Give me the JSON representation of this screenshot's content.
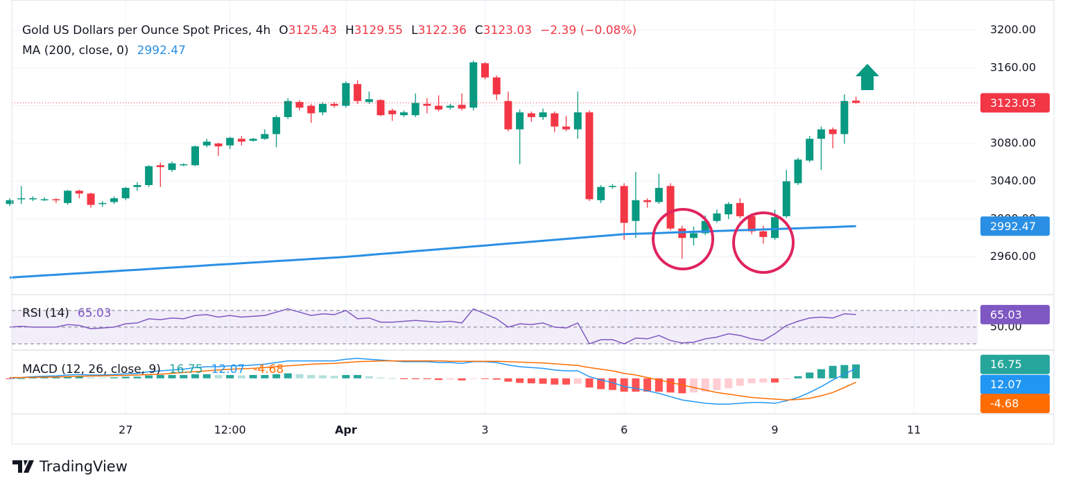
{
  "chart_data": {
    "type": "candlestick",
    "title": "Gold US Dollars per Ounce Spot Prices, 4h",
    "ohlc_labels": [
      "O",
      "H",
      "L",
      "C"
    ],
    "change": "−2.39 (−0.08%)",
    "up_color": "#089981",
    "down_color": "#f23645",
    "categories": [
      null,
      null,
      null,
      null,
      null,
      null,
      null,
      null,
      null,
      null,
      "27",
      null,
      null,
      null,
      null,
      null,
      null,
      null,
      null,
      "12:00",
      null,
      null,
      null,
      null,
      null,
      null,
      null,
      null,
      null,
      "Apr",
      null,
      null,
      null,
      null,
      null,
      null,
      null,
      null,
      null,
      null,
      null,
      "3",
      null,
      null,
      null,
      null,
      null,
      null,
      null,
      null,
      null,
      null,
      null,
      "6",
      null,
      null,
      null,
      null,
      null,
      null,
      null,
      null,
      null,
      null,
      null,
      null,
      "9",
      null,
      null,
      null,
      null,
      null,
      null,
      null,
      null,
      null,
      null,
      null,
      "11",
      null,
      null,
      null,
      null,
      null
    ],
    "open": [
      3016,
      3021,
      3021,
      3021,
      3021,
      3017,
      3030,
      3027,
      3016,
      3018,
      3022,
      3034,
      3036,
      3057,
      3052,
      3057,
      3057,
      3078,
      3080,
      3078,
      3085,
      3083,
      3085,
      3090,
      3108,
      3124,
      3120,
      3113,
      3122,
      3120,
      3143,
      3124,
      3126,
      3115,
      3110,
      3110,
      3122,
      3120,
      3118,
      3121,
      3118,
      3165,
      3150,
      3125,
      3095,
      3112,
      3108,
      3112,
      3098,
      3095,
      3113,
      3020,
      3034,
      3035,
      2998,
      3020,
      3018,
      3035,
      2990,
      2980,
      2985,
      2998,
      3005,
      3017,
      3003,
      2987,
      2980,
      3003,
      3038,
      3062,
      3085,
      3095,
      3090,
      3125.43,
      null,
      null,
      null,
      null,
      null,
      null,
      null,
      null,
      null,
      null
    ],
    "high": [
      3022,
      3035,
      3024,
      3023,
      3022,
      3031,
      3031,
      3028,
      3019,
      3024,
      3034,
      3039,
      3057,
      3060,
      3061,
      3059,
      3078,
      3085,
      3081,
      3087,
      3088,
      3086,
      3095,
      3110,
      3128,
      3126,
      3122,
      3124,
      3124,
      3146,
      3147,
      3135,
      3127,
      3117,
      3115,
      3133,
      3128,
      3131,
      3122,
      3133,
      3168,
      3166,
      3152,
      3135,
      3116,
      3114,
      3117,
      3114,
      3109,
      3135,
      3115,
      3036,
      3037,
      3038,
      3050,
      3022,
      3048,
      3038,
      2993,
      2992,
      3004,
      3010,
      3018,
      3022,
      3006,
      2993,
      3010,
      3052,
      3065,
      3088,
      3098,
      3097,
      3132,
      3129.55,
      null,
      null,
      null,
      null,
      null,
      null,
      null,
      null,
      null,
      null
    ],
    "low": [
      3014,
      3016,
      3019,
      3019,
      3017,
      3015,
      3022,
      3012,
      3013,
      3016,
      3020,
      3030,
      3034,
      3034,
      3050,
      3056,
      3056,
      3076,
      3067,
      3074,
      3078,
      3082,
      3084,
      3076,
      3106,
      3115,
      3102,
      3110,
      3118,
      3118,
      3122,
      3122,
      3109,
      3104,
      3108,
      3108,
      3112,
      3114,
      3116,
      3115,
      3115,
      3148,
      3126,
      3093,
      3058,
      3103,
      3105,
      3092,
      3093,
      3085,
      3019,
      3017,
      3032,
      2978,
      2980,
      3012,
      3016,
      2988,
      2958,
      2972,
      2983,
      2996,
      3000,
      3001,
      2984,
      2974,
      2978,
      3001,
      3036,
      3060,
      3052,
      3075,
      3080,
      3122.36,
      null,
      null,
      null,
      null,
      null,
      null,
      null,
      null,
      null,
      null
    ],
    "close": [
      3020,
      3022,
      3022,
      3021,
      3020,
      3030,
      3027,
      3015,
      3017,
      3022,
      3033,
      3036,
      3056,
      3055,
      3059,
      3058,
      3077,
      3082,
      3077,
      3086,
      3082,
      3085,
      3090,
      3108,
      3125,
      3118,
      3112,
      3122,
      3120,
      3144,
      3125,
      3127,
      3110,
      3111,
      3113,
      3123,
      3120,
      3116,
      3120,
      3117,
      3166,
      3150,
      3132,
      3095,
      3113,
      3108,
      3113,
      3098,
      3095,
      3113,
      3021,
      3034,
      3035,
      2996,
      3020,
      3018,
      3033,
      2990,
      2980,
      2985,
      2998,
      3006,
      3016,
      3003,
      2987,
      2981,
      3002,
      3040,
      3063,
      3085,
      3095,
      3090,
      3125,
      3123.03,
      null,
      null,
      null,
      null,
      null,
      null,
      null,
      null,
      null,
      null
    ],
    "ylim": [
      2920,
      3232
    ],
    "yticks": [
      {
        "value": 2960,
        "label": "2960.00"
      },
      {
        "value": 3000,
        "label": "3000.00"
      },
      {
        "value": 3040,
        "label": "3040.00"
      },
      {
        "value": 3080,
        "label": "3080.00"
      },
      {
        "value": 3120,
        "label": "3120.00"
      },
      {
        "value": 3160,
        "label": "3160.00"
      },
      {
        "value": 3200,
        "label": "3200.00"
      }
    ],
    "ma": {
      "name": "MA (200, close, 0)",
      "color": "#2a8fe4",
      "values": [
        2938,
        2938.8,
        2939.5,
        2940.3,
        2941,
        2941.8,
        2942.6,
        2943.3,
        2944.1,
        2944.8,
        2945.6,
        2946.3,
        2947.1,
        2947.9,
        2948.6,
        2949.4,
        2950.1,
        2950.9,
        2951.7,
        2952.4,
        2953.2,
        2953.9,
        2954.7,
        2955.5,
        2956.2,
        2957,
        2957.7,
        2958.5,
        2959.2,
        2960,
        2961,
        2962,
        2963,
        2964,
        2965,
        2966,
        2967,
        2968,
        2969,
        2970,
        2971,
        2972,
        2973,
        2974,
        2975,
        2976,
        2977,
        2978,
        2979,
        2980,
        2981,
        2982,
        2983,
        2984,
        2984.4,
        2984.8,
        2985.2,
        2985.7,
        2986.1,
        2986.5,
        2986.9,
        2987.3,
        2987.7,
        2988.2,
        2988.6,
        2989,
        2989.4,
        2989.8,
        2990.2,
        2990.7,
        2991.1,
        2991.5,
        2992,
        2992.47,
        null,
        null,
        null,
        null,
        null,
        null,
        null,
        null,
        null,
        null
      ]
    },
    "rsi": {
      "name": "RSI (14)",
      "color": "#7e57c2",
      "ylim": [
        22.5,
        89
      ],
      "levels": [
        70,
        50,
        30
      ],
      "yticks": [
        {
          "value": 50,
          "label": "50.00"
        }
      ],
      "values": [
        50,
        51,
        50,
        50,
        50,
        53,
        52,
        48,
        49,
        50,
        54,
        55,
        60,
        59,
        61,
        60,
        64,
        65,
        62,
        64,
        62,
        63,
        64,
        68,
        72,
        68,
        64,
        66,
        65,
        70,
        60,
        61,
        56,
        56,
        57,
        58,
        57,
        56,
        57,
        55,
        72,
        66,
        60,
        50,
        54,
        53,
        55,
        50,
        49,
        55,
        30,
        35,
        35,
        30,
        37,
        36,
        40,
        34,
        31,
        32,
        36,
        38,
        42,
        40,
        36,
        34,
        42,
        52,
        57,
        61,
        62,
        61,
        66,
        65.03,
        null,
        null,
        null,
        null,
        null,
        null,
        null,
        null,
        null,
        null
      ]
    },
    "macd": {
      "name": "MACD (12, 26, close, 9)",
      "ylim": [
        -41,
        34
      ],
      "macd": {
        "color": "#2196f3",
        "values": [
          0,
          1,
          2,
          2.5,
          3,
          4,
          4.5,
          4,
          4,
          4.5,
          5.5,
          6,
          8,
          9,
          10,
          11,
          13,
          14,
          14,
          15,
          15,
          16,
          17,
          19,
          21,
          21,
          21,
          21,
          21,
          23,
          24,
          23,
          22,
          21,
          20,
          20,
          20,
          19,
          19,
          18,
          20,
          20,
          19,
          16,
          14,
          13,
          12,
          10,
          9,
          9,
          2,
          -2,
          -5,
          -10,
          -12,
          -15,
          -18,
          -22,
          -26,
          -28,
          -30,
          -31,
          -31,
          -30,
          -29,
          -29,
          -30,
          -27,
          -23,
          -17,
          -10,
          -2,
          5,
          12.07,
          null,
          null,
          null,
          null,
          null,
          null,
          null,
          null,
          null,
          null
        ]
      },
      "signal": {
        "color": "#ff6d00",
        "values": [
          1,
          1,
          1.2,
          1.4,
          1.7,
          2,
          2.5,
          2.8,
          3,
          3.3,
          3.6,
          4,
          4.5,
          5,
          6,
          7,
          8,
          9,
          10,
          11,
          11.5,
          12,
          13,
          14,
          15,
          16,
          17,
          17.5,
          18,
          19,
          20,
          20.5,
          21,
          21,
          21,
          21,
          21,
          21,
          20.5,
          20.5,
          20.5,
          20.5,
          20.5,
          20,
          19.5,
          19,
          18.5,
          17.5,
          16.5,
          15.5,
          13,
          11,
          9,
          6,
          4,
          1,
          -2,
          -5,
          -8,
          -11,
          -14,
          -17,
          -19,
          -21,
          -23,
          -24,
          -25,
          -26,
          -25.5,
          -24,
          -21,
          -17,
          -11,
          -4.68,
          null,
          null,
          null,
          null,
          null,
          null,
          null,
          null,
          null,
          null
        ]
      },
      "histogram": {
        "colors": [
          "#26a69a",
          "#b2dfdb",
          "#ff5252",
          "#ffcdd2"
        ],
        "values": [
          -1,
          0,
          0.8,
          1.1,
          1.3,
          2,
          2,
          1.2,
          1,
          1.2,
          1.9,
          2,
          3.5,
          4,
          4,
          4,
          5,
          5,
          4,
          4,
          3.5,
          4,
          4,
          5,
          6,
          5,
          4,
          3.5,
          3,
          4,
          4,
          2.5,
          1,
          0,
          -1,
          -1,
          -1,
          -2,
          -1.5,
          -2.5,
          -0.5,
          -0.5,
          -1.5,
          -4,
          -5.5,
          -6,
          -6.5,
          -7.5,
          -7.5,
          -6.5,
          -11,
          -13,
          -14,
          -16,
          -16,
          -16,
          -16,
          -17,
          -18,
          -17,
          -16,
          -14,
          -12,
          -9,
          -6,
          -5,
          -5,
          -1,
          2.5,
          7,
          11,
          15,
          16,
          16.75,
          null,
          null,
          null,
          null,
          null,
          null,
          null,
          null,
          null,
          null
        ]
      }
    },
    "brand": "TradingView"
  }
}
